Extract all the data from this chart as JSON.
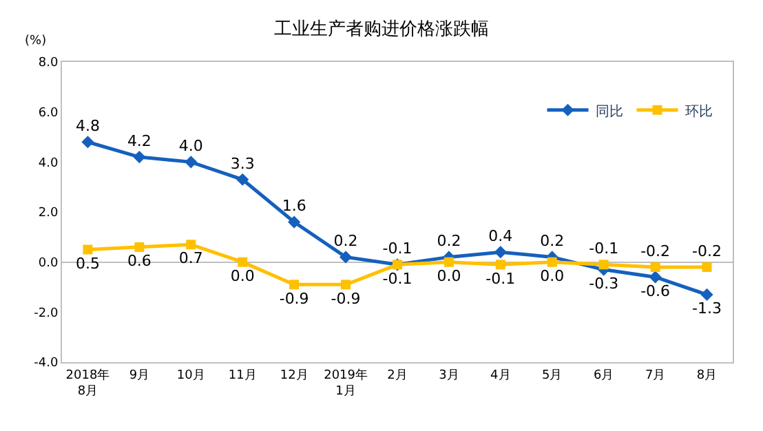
{
  "chart_data": {
    "type": "line",
    "title": "工业生产者购进价格涨跌幅",
    "ylabel": "(%)",
    "categories": [
      "2018年\n8月",
      "9月",
      "10月",
      "11月",
      "12月",
      "2019年\n1月",
      "2月",
      "3月",
      "4月",
      "5月",
      "6月",
      "7月",
      "8月"
    ],
    "series": [
      {
        "name": "同比",
        "color": "#1560bd",
        "marker": "diamond",
        "values": [
          4.8,
          4.2,
          4.0,
          3.3,
          1.6,
          0.2,
          -0.1,
          0.2,
          0.4,
          0.2,
          -0.3,
          -0.6,
          -1.3
        ],
        "value_labels": [
          "4.8",
          "4.2",
          "4.0",
          "3.3",
          "1.6",
          "0.2",
          "-0.1",
          "0.2",
          "0.4",
          "0.2",
          "-0.3",
          "-0.6",
          "-1.3"
        ]
      },
      {
        "name": "环比",
        "color": "#ffc000",
        "marker": "square",
        "values": [
          0.5,
          0.6,
          0.7,
          0.0,
          -0.9,
          -0.9,
          -0.1,
          0.0,
          -0.1,
          0.0,
          -0.1,
          -0.2,
          -0.2
        ],
        "value_labels": [
          "0.5",
          "0.6",
          "0.7",
          "0.0",
          "-0.9",
          "-0.9",
          "-0.1",
          "0.0",
          "-0.1",
          "0.0",
          "-0.1",
          "-0.2",
          "-0.2"
        ]
      }
    ],
    "ylim": [
      -4,
      8
    ],
    "yticks": [
      {
        "value": -4,
        "label": "-4.0"
      },
      {
        "value": -2,
        "label": "-2.0"
      },
      {
        "value": 0,
        "label": "0.0"
      },
      {
        "value": 2,
        "label": "2.0"
      },
      {
        "value": 4,
        "label": "4.0"
      },
      {
        "value": 6,
        "label": "6.0"
      },
      {
        "value": 8,
        "label": "8.0"
      }
    ],
    "legend": "top right"
  }
}
